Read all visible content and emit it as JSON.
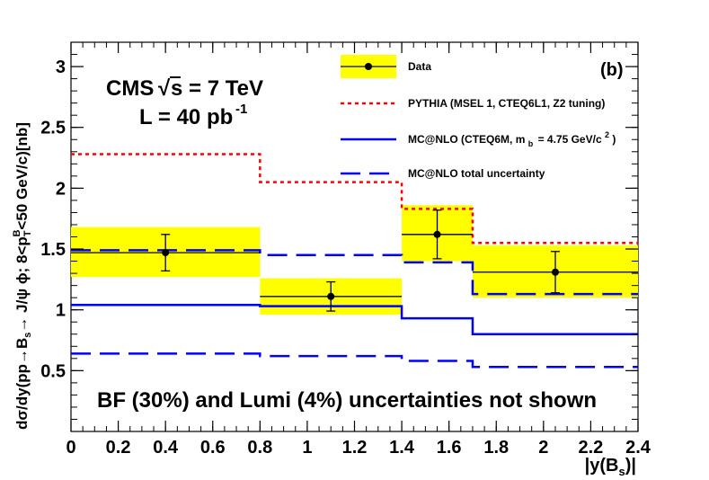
{
  "chart_data": {
    "type": "step-histogram",
    "panel_label": "(b)",
    "experiment": "CMS",
    "energy_label": "s = 7 TeV",
    "energy_prefix": "√",
    "lumi_label": "L = 40 pb",
    "lumi_exp": "-1",
    "note": "BF (30%) and Lumi (4%) uncertainties not shown",
    "xlabel": "|y(B",
    "xlabel_sub": "s",
    "xlabel_end": ")|",
    "ylabel": "dσ/dy(pp→B",
    "ylabel_sub1": "s",
    "ylabel_mid": "→ J/ψ ϕ; 8<p",
    "ylabel_sub2": "T",
    "ylabel_sup2": "B",
    "ylabel_end": "<50 GeV/c)[nb]",
    "xlim": [
      0,
      2.4
    ],
    "ylim": [
      0,
      3.2
    ],
    "x_ticks": [
      0,
      0.2,
      0.4,
      0.6,
      0.8,
      1,
      1.2,
      1.4,
      1.6,
      1.8,
      2,
      2.2,
      2.4
    ],
    "x_tick_labels": [
      "0",
      "0.2",
      "0.4",
      "0.6",
      "0.8",
      "1",
      "1.2",
      "1.4",
      "1.6",
      "1.8",
      "2",
      "2.2",
      "2.4"
    ],
    "y_ticks": [
      0.5,
      1,
      1.5,
      2,
      2.5,
      3
    ],
    "y_tick_labels": [
      "0.5",
      "1",
      "1.5",
      "2",
      "2.5",
      "3"
    ],
    "bins": [
      [
        0,
        0.8
      ],
      [
        0.8,
        1.4
      ],
      [
        1.4,
        1.7
      ],
      [
        1.7,
        2.4
      ]
    ],
    "data": {
      "name": "Data",
      "x": [
        0.4,
        1.1,
        1.55,
        2.05
      ],
      "y": [
        1.47,
        1.11,
        1.62,
        1.31
      ],
      "stat_err": [
        0.15,
        0.12,
        0.2,
        0.17
      ],
      "syst_band": [
        [
          1.27,
          1.68
        ],
        [
          0.96,
          1.26
        ],
        [
          1.4,
          1.86
        ],
        [
          1.1,
          1.53
        ]
      ]
    },
    "series": [
      {
        "name": "PYTHIA (MSEL 1, CTEQ6L1, Z2 tuning)",
        "values": [
          2.28,
          2.05,
          1.83,
          1.55
        ],
        "color": "#ff0000",
        "style": "dotted"
      },
      {
        "name": "MC@NLO (CTEQ6M, m",
        "name_sub": "b",
        "name_end": "= 4.75 GeV/c",
        "name_sup": "2",
        "name_close": ")",
        "values": [
          1.04,
          1.03,
          0.93,
          0.8
        ],
        "color": "#0000ff",
        "style": "solid"
      },
      {
        "name": "MC@NLO total uncertainty",
        "upper": [
          1.49,
          1.45,
          1.39,
          1.13
        ],
        "lower": [
          0.64,
          0.62,
          0.58,
          0.53
        ],
        "color": "#0000ff",
        "style": "dashed"
      }
    ],
    "colors": {
      "band": "#ffff00",
      "axis": "#000000"
    }
  }
}
